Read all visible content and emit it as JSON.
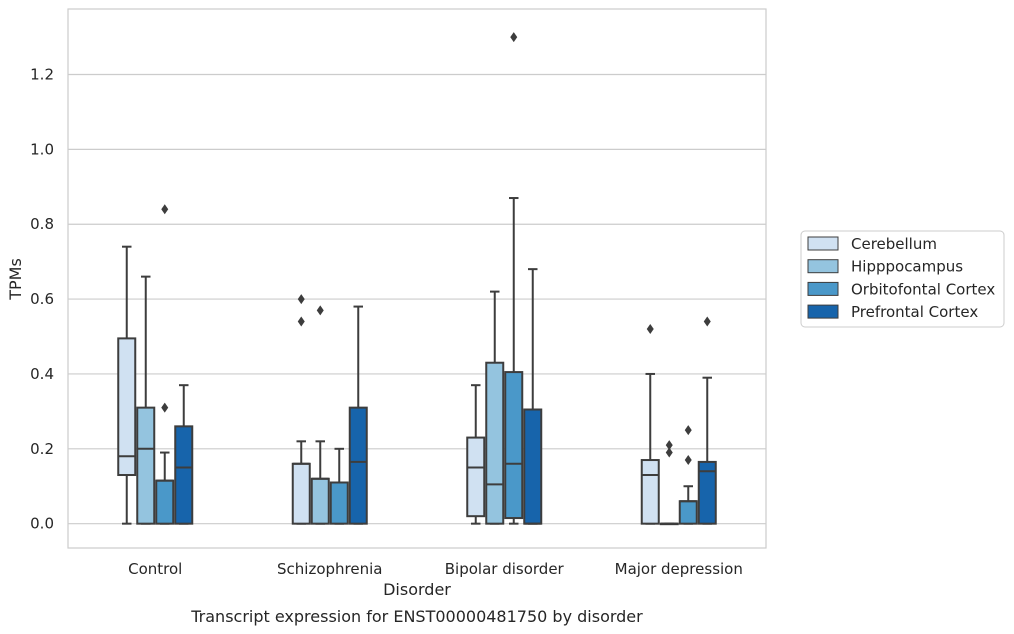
{
  "chart_data": {
    "type": "box",
    "title": "",
    "caption": "Transcript expression for ENST00000481750 by disorder",
    "xlabel": "Disorder",
    "ylabel": "TPMs",
    "ylim": [
      -0.065,
      1.375
    ],
    "yticks": [
      0.0,
      0.2,
      0.4,
      0.6,
      0.8,
      1.0,
      1.2
    ],
    "ytick_labels": [
      "0.0",
      "0.2",
      "0.4",
      "0.6",
      "0.8",
      "1.0",
      "1.2"
    ],
    "categories": [
      "Control",
      "Schizophrenia",
      "Bipolar disorder",
      "Major depression"
    ],
    "grid": "horizontal",
    "legend_position": "right",
    "series": [
      {
        "name": "Cerebellum",
        "color": "#d0e1f2",
        "boxes": [
          {
            "whisker_low": 0.0,
            "q1": 0.13,
            "median": 0.18,
            "q3": 0.495,
            "whisker_high": 0.74,
            "outliers": []
          },
          {
            "whisker_low": 0.0,
            "q1": 0.0,
            "median": 0.16,
            "q3": 0.16,
            "whisker_high": 0.22,
            "outliers": [
              0.54,
              0.6
            ]
          },
          {
            "whisker_low": 0.0,
            "q1": 0.02,
            "median": 0.15,
            "q3": 0.23,
            "whisker_high": 0.37,
            "outliers": []
          },
          {
            "whisker_low": 0.0,
            "q1": 0.0,
            "median": 0.13,
            "q3": 0.17,
            "whisker_high": 0.4,
            "outliers": [
              0.52
            ]
          }
        ]
      },
      {
        "name": "Hipppocampus",
        "color": "#94c4df",
        "boxes": [
          {
            "whisker_low": 0.0,
            "q1": 0.0,
            "median": 0.2,
            "q3": 0.31,
            "whisker_high": 0.66,
            "outliers": []
          },
          {
            "whisker_low": 0.0,
            "q1": 0.0,
            "median": 0.12,
            "q3": 0.12,
            "whisker_high": 0.22,
            "outliers": [
              0.57
            ]
          },
          {
            "whisker_low": 0.0,
            "q1": 0.0,
            "median": 0.105,
            "q3": 0.43,
            "whisker_high": 0.62,
            "outliers": []
          },
          {
            "whisker_low": 0.0,
            "q1": 0.0,
            "median": 0.0,
            "q3": 0.0,
            "whisker_high": 0.0,
            "outliers": [
              0.19,
              0.21
            ]
          }
        ]
      },
      {
        "name": "Orbitofontal Cortex",
        "color": "#4a98c9",
        "boxes": [
          {
            "whisker_low": 0.0,
            "q1": 0.0,
            "median": 0.115,
            "q3": 0.115,
            "whisker_high": 0.19,
            "outliers": [
              0.31,
              0.84
            ]
          },
          {
            "whisker_low": 0.0,
            "q1": 0.0,
            "median": 0.11,
            "q3": 0.11,
            "whisker_high": 0.2,
            "outliers": []
          },
          {
            "whisker_low": 0.0,
            "q1": 0.015,
            "median": 0.16,
            "q3": 0.405,
            "whisker_high": 0.87,
            "outliers": [
              1.3
            ]
          },
          {
            "whisker_low": 0.0,
            "q1": 0.0,
            "median": 0.06,
            "q3": 0.06,
            "whisker_high": 0.1,
            "outliers": [
              0.17,
              0.25
            ]
          }
        ]
      },
      {
        "name": "Prefrontal Cortex",
        "color": "#1764ab",
        "boxes": [
          {
            "whisker_low": 0.0,
            "q1": 0.0,
            "median": 0.15,
            "q3": 0.26,
            "whisker_high": 0.37,
            "outliers": []
          },
          {
            "whisker_low": 0.0,
            "q1": 0.0,
            "median": 0.165,
            "q3": 0.31,
            "whisker_high": 0.58,
            "outliers": []
          },
          {
            "whisker_low": 0.0,
            "q1": 0.0,
            "median": 0.0,
            "q3": 0.305,
            "whisker_high": 0.68,
            "outliers": []
          },
          {
            "whisker_low": 0.0,
            "q1": 0.0,
            "median": 0.14,
            "q3": 0.165,
            "whisker_high": 0.39,
            "outliers": [
              0.54
            ]
          }
        ]
      }
    ]
  }
}
